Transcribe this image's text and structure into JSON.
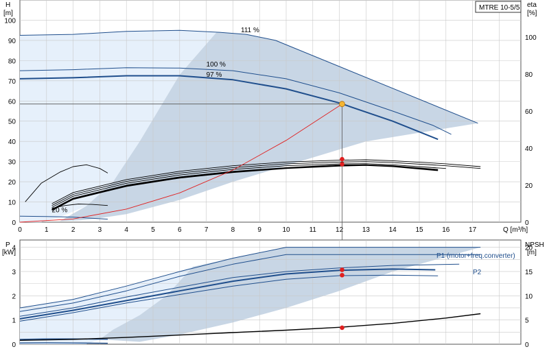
{
  "chart_data": [
    {
      "type": "line",
      "model_label": "MTRE 10-5/5",
      "xlabel": "Q [m³/h]",
      "ylabel_left_unit": "H",
      "ylabel_left_bracket": "[m]",
      "ylabel_right_unit": "eta",
      "ylabel_right_bracket": "[%]",
      "xlim": [
        0,
        18.5
      ],
      "ylim_left": [
        0,
        110
      ],
      "ylim_right": [
        0,
        100
      ],
      "x_ticks": [
        "0",
        "1",
        "2",
        "3",
        "4",
        "5",
        "6",
        "7",
        "8",
        "9",
        "10",
        "11",
        "12",
        "13",
        "14",
        "15",
        "16",
        "17"
      ],
      "y_ticks_left": [
        "0",
        "10",
        "20",
        "30",
        "40",
        "50",
        "60",
        "70",
        "80",
        "90",
        "100"
      ],
      "y_ticks_right": [
        "0",
        "20",
        "40",
        "60",
        "80",
        "100"
      ],
      "grid": true,
      "annotations": [
        {
          "text": "111 %",
          "x": 8.3,
          "y": 94
        },
        {
          "text": "100 %",
          "x": 7.0,
          "y": 77
        },
        {
          "text": "97 %",
          "x": 7.0,
          "y": 72
        },
        {
          "text": "20 %",
          "x": 1.2,
          "y": 5
        }
      ],
      "duty_point": {
        "x": 12.1,
        "y": 58.5
      },
      "series": [
        {
          "kind": "head-111",
          "points": [
            [
              0,
              92.5
            ],
            [
              2,
              93
            ],
            [
              4,
              94.5
            ],
            [
              6,
              95
            ],
            [
              7.5,
              94
            ],
            [
              8.5,
              93
            ],
            [
              9.6,
              90
            ],
            [
              17.2,
              49
            ]
          ]
        },
        {
          "kind": "head-100",
          "points": [
            [
              0,
              75
            ],
            [
              2,
              75.5
            ],
            [
              4,
              76.5
            ],
            [
              6,
              76.3
            ],
            [
              8,
              75
            ],
            [
              10,
              71
            ],
            [
              12,
              64
            ],
            [
              14,
              55
            ],
            [
              15.5,
              48
            ],
            [
              16.2,
              43.5
            ]
          ]
        },
        {
          "kind": "head-97",
          "points": [
            [
              0,
              71
            ],
            [
              2,
              71.5
            ],
            [
              4,
              72.5
            ],
            [
              6,
              72.5
            ],
            [
              8,
              70.5
            ],
            [
              10,
              66
            ],
            [
              12,
              59
            ],
            [
              14,
              50
            ],
            [
              15.7,
              41
            ]
          ]
        },
        {
          "kind": "head-20",
          "points": [
            [
              0,
              3
            ],
            [
              1,
              2.8
            ],
            [
              2,
              2.5
            ],
            [
              3.3,
              1.5
            ]
          ]
        },
        {
          "kind": "eta",
          "points": [
            [
              1.2,
              10
            ],
            [
              2,
              16
            ],
            [
              3,
              19.5
            ],
            [
              4,
              23
            ],
            [
              6,
              27.5
            ],
            [
              8,
              30.5
            ],
            [
              10,
              32.5
            ],
            [
              12,
              33.5
            ],
            [
              13,
              33.7
            ],
            [
              14,
              33.2
            ],
            [
              16,
              31.5
            ],
            [
              17.3,
              30
            ]
          ]
        },
        {
          "kind": "eta",
          "points": [
            [
              1.2,
              9
            ],
            [
              2,
              15
            ],
            [
              3,
              18.5
            ],
            [
              4,
              22
            ],
            [
              6,
              26.5
            ],
            [
              8,
              29.5
            ],
            [
              10,
              31.5
            ],
            [
              12,
              32.5
            ],
            [
              13,
              32.7
            ],
            [
              14,
              32.2
            ],
            [
              16,
              30.5
            ],
            [
              17.3,
              29
            ]
          ]
        },
        {
          "kind": "eta",
          "points": [
            [
              1.2,
              8
            ],
            [
              2,
              14
            ],
            [
              3,
              17.5
            ],
            [
              4,
              21
            ],
            [
              6,
              25.5
            ],
            [
              8,
              28.5
            ],
            [
              10,
              30.5
            ],
            [
              12,
              31.5
            ],
            [
              13,
              31.6
            ],
            [
              14,
              31
            ],
            [
              16,
              29
            ]
          ]
        },
        {
          "kind": "eta",
          "points": [
            [
              1.2,
              7
            ],
            [
              2,
              13
            ],
            [
              3,
              16.5
            ],
            [
              4,
              20
            ],
            [
              6,
              24.5
            ],
            [
              8,
              27.5
            ],
            [
              10,
              29.5
            ],
            [
              12,
              31
            ],
            [
              13,
              31
            ],
            [
              14,
              30.5
            ],
            [
              15.7,
              28.5
            ]
          ]
        },
        {
          "kind": "eta-duty",
          "points": [
            [
              1.2,
              6.5
            ],
            [
              2,
              12.5
            ],
            [
              3,
              16
            ],
            [
              4,
              19.5
            ],
            [
              6,
              24
            ],
            [
              8,
              27
            ],
            [
              10,
              29.2
            ],
            [
              12,
              30.5
            ],
            [
              13,
              30.8
            ],
            [
              14,
              30.2
            ],
            [
              15.7,
              28
            ]
          ]
        },
        {
          "kind": "eta",
          "points": [
            [
              0.2,
              11
            ],
            [
              0.8,
              21
            ],
            [
              1.5,
              27
            ],
            [
              2,
              30
            ],
            [
              2.5,
              31
            ],
            [
              3,
              29
            ],
            [
              3.3,
              26.5
            ]
          ]
        },
        {
          "kind": "eta",
          "points": [
            [
              1.2,
              7.5
            ],
            [
              1.7,
              9
            ],
            [
              2.2,
              9.8
            ],
            [
              2.7,
              9.6
            ],
            [
              3.3,
              9
            ]
          ]
        },
        {
          "kind": "system",
          "points": [
            [
              0,
              0
            ],
            [
              2,
              1.6
            ],
            [
              4,
              6.5
            ],
            [
              6,
              14.5
            ],
            [
              8,
              25.8
            ],
            [
              10,
              40.5
            ],
            [
              12.1,
              58.5
            ]
          ]
        }
      ],
      "markers": [
        {
          "kind": "eta-dot",
          "x": 12.1,
          "y": 34.0
        },
        {
          "kind": "eta-dot",
          "x": 12.1,
          "y": 31.3
        }
      ]
    },
    {
      "type": "line",
      "xlabel": "",
      "ylabel_left_unit": "P",
      "ylabel_left_bracket": "[kW]",
      "ylabel_right_unit": "NPSH",
      "ylabel_right_bracket": "[m]",
      "xlim": [
        0,
        18.5
      ],
      "ylim_left": [
        0,
        4.3
      ],
      "ylim_right": [
        0,
        21.5
      ],
      "y_ticks_left": [
        "0",
        "1",
        "2",
        "3",
        "4"
      ],
      "y_ticks_right": [
        "0",
        "5",
        "10",
        "15",
        "20"
      ],
      "grid": true,
      "legend_labels": {
        "p1": "P1 (motor+freq.converter)",
        "p2": "P2"
      },
      "series": [
        {
          "kind": "p-top",
          "points": [
            [
              0,
              1.5
            ],
            [
              2,
              1.85
            ],
            [
              4,
              2.4
            ],
            [
              6,
              3.0
            ],
            [
              8,
              3.55
            ],
            [
              10,
              4.0
            ],
            [
              17.3,
              4.0
            ]
          ]
        },
        {
          "kind": "p-mid",
          "points": [
            [
              0,
              1.35
            ],
            [
              2,
              1.7
            ],
            [
              4,
              2.2
            ],
            [
              6,
              2.8
            ],
            [
              8,
              3.3
            ],
            [
              10,
              3.7
            ],
            [
              17.3,
              3.7
            ]
          ]
        },
        {
          "kind": "p-mid",
          "points": [
            [
              0,
              1.15
            ],
            [
              2,
              1.5
            ],
            [
              4,
              1.95
            ],
            [
              6,
              2.35
            ],
            [
              8,
              2.75
            ],
            [
              10,
              3.0
            ],
            [
              12,
              3.15
            ],
            [
              14,
              3.25
            ],
            [
              16.5,
              3.3
            ]
          ]
        },
        {
          "kind": "p-duty",
          "points": [
            [
              0,
              1.05
            ],
            [
              2,
              1.4
            ],
            [
              4,
              1.8
            ],
            [
              6,
              2.2
            ],
            [
              8,
              2.6
            ],
            [
              10,
              2.9
            ],
            [
              12,
              3.05
            ],
            [
              14,
              3.1
            ],
            [
              15.6,
              3.07
            ]
          ]
        },
        {
          "kind": "p-mid",
          "points": [
            [
              0,
              0.95
            ],
            [
              2,
              1.3
            ],
            [
              4,
              1.7
            ],
            [
              6,
              2.05
            ],
            [
              8,
              2.4
            ],
            [
              10,
              2.68
            ],
            [
              12,
              2.83
            ],
            [
              14,
              2.85
            ],
            [
              15.7,
              2.82
            ]
          ]
        },
        {
          "kind": "p-low",
          "points": [
            [
              0,
              0.2
            ],
            [
              1,
              0.22
            ],
            [
              2,
              0.22
            ],
            [
              3.3,
              0.2
            ]
          ]
        },
        {
          "kind": "p-low",
          "points": [
            [
              0,
              0.05
            ],
            [
              1,
              0.06
            ],
            [
              2,
              0.05
            ],
            [
              3.3,
              0.04
            ]
          ]
        },
        {
          "kind": "npsh",
          "points": [
            [
              0,
              0.8
            ],
            [
              2,
              1.0
            ],
            [
              4,
              1.4
            ],
            [
              6,
              1.9
            ],
            [
              8,
              2.4
            ],
            [
              10,
              2.9
            ],
            [
              12,
              3.5
            ],
            [
              14,
              4.3
            ],
            [
              16,
              5.4
            ],
            [
              17.3,
              6.3
            ]
          ]
        }
      ],
      "markers": [
        {
          "kind": "p-dot",
          "x": 12.1,
          "y": 3.07
        },
        {
          "kind": "p-dot",
          "x": 12.1,
          "y": 2.85
        },
        {
          "kind": "npsh-dot",
          "x": 12.1,
          "y": 3.4
        }
      ]
    }
  ]
}
